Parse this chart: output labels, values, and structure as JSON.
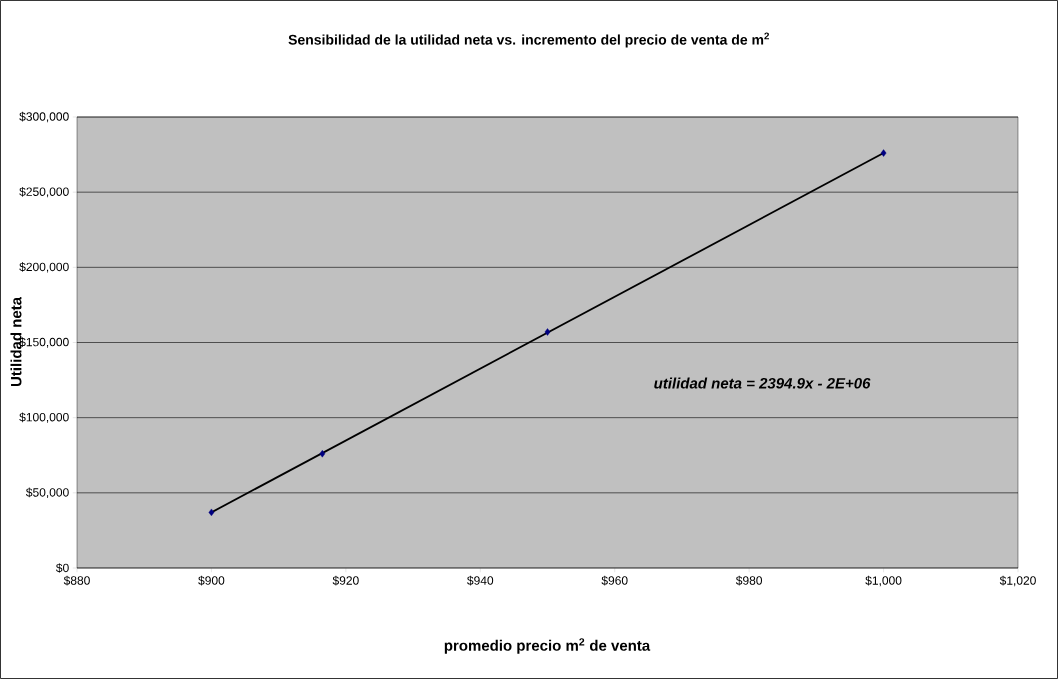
{
  "chart_data": {
    "type": "scatter",
    "title": "Sensibilidad de la utilidad neta vs. incremento del precio de venta de m$^{2}$",
    "xlabel": "promedio precio m$^{2}$ de venta",
    "ylabel": "Utilidad neta",
    "x": [
      900,
      916.5,
      950,
      1000
    ],
    "series": [
      {
        "color": "#000080",
        "marker": "diamond",
        "values": [
          37000,
          76000,
          157000,
          276000
        ]
      },
      {
        "type": "line",
        "color": "#000000",
        "marker": "none",
        "x": [
          900,
          1000
        ],
        "values": [
          37000,
          276000
        ]
      }
    ],
    "annotations": [
      "utilidad neta = 2394.9x - 2E+06"
    ],
    "xlim": [
      880,
      1020
    ],
    "ylim": [
      0,
      300000
    ],
    "xticks": [
      {
        "value": 880,
        "label": "$880"
      },
      {
        "value": 900,
        "label": "$900"
      },
      {
        "value": 920,
        "label": "$920"
      },
      {
        "value": 940,
        "label": "$940"
      },
      {
        "value": 960,
        "label": "$960"
      },
      {
        "value": 980,
        "label": "$980"
      },
      {
        "value": 1000,
        "label": "$1,000"
      },
      {
        "value": 1020,
        "label": "$1,020"
      }
    ],
    "yticks": [
      {
        "value": 0,
        "label": "$0"
      },
      {
        "value": 50000,
        "label": "$50,000"
      },
      {
        "value": 100000,
        "label": "$100,000"
      },
      {
        "value": 150000,
        "label": "$150,000"
      },
      {
        "value": 200000,
        "label": "$200,000"
      },
      {
        "value": 250000,
        "label": "$250,000"
      },
      {
        "value": 300000,
        "label": "$300,000"
      }
    ],
    "grid": "y"
  }
}
